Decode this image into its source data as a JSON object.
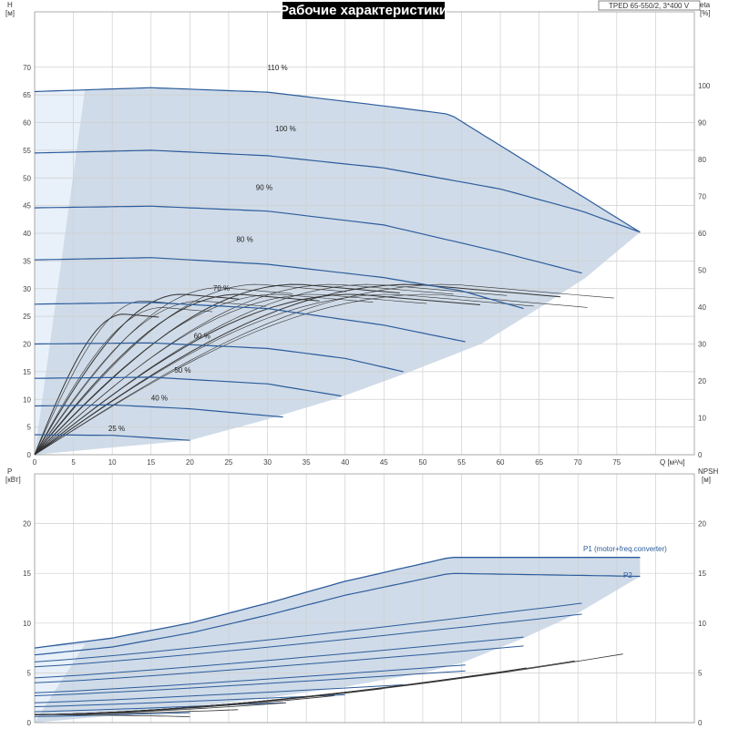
{
  "title": "Рабочие характеристики",
  "model": "TPED 65-550/2, 3*400 V",
  "top_panel": {
    "left_axis_label": [
      "H",
      "[м]"
    ],
    "right_axis_label": [
      "eta",
      "[%]"
    ],
    "x_axis_label": "Q [м³/ч]"
  },
  "bottom_panel": {
    "left_axis_label": [
      "P",
      "[кВт]"
    ],
    "right_axis_label": [
      "NPSH",
      "[м]"
    ],
    "p1_label": "P1 (motor+freq.converter)",
    "p2_label": "P2"
  },
  "colors": {
    "curve": "#2c5c9c",
    "envelope": "#cfdbe8",
    "envelope_light": "#e8f0f9",
    "eff": "#333333"
  },
  "chart_data": [
    {
      "type": "line",
      "ylabel": "H [м]",
      "y2label": "eta [%]",
      "xlabel": "Q [м³/ч]",
      "xlim": [
        0,
        85
      ],
      "ylim": [
        0,
        80
      ],
      "y2lim": [
        0,
        120
      ],
      "x_ticks": [
        "0",
        "5",
        "10",
        "15",
        "20",
        "25",
        "30",
        "35",
        "40",
        "45",
        "50",
        "55",
        "60",
        "65",
        "70",
        "75"
      ],
      "y_ticks": [
        "0",
        "5",
        "10",
        "15",
        "20",
        "25",
        "30",
        "35",
        "40",
        "45",
        "50",
        "55",
        "60",
        "65",
        "70"
      ],
      "y2_ticks": [
        "0",
        "10",
        "20",
        "30",
        "40",
        "50",
        "60",
        "70",
        "80",
        "90",
        "100"
      ],
      "series": [
        {
          "name": "110 %",
          "x": [
            0,
            15,
            30,
            45,
            53.5,
            78
          ],
          "y": [
            65.6,
            66.3,
            65.5,
            63.0,
            61.5,
            40.2
          ]
        },
        {
          "name": "100 %",
          "x": [
            0,
            15,
            30,
            45,
            60,
            70.5,
            78
          ],
          "y": [
            54.5,
            55.0,
            54.0,
            51.8,
            48.0,
            44.0,
            40.2
          ]
        },
        {
          "name": "90 %",
          "x": [
            0,
            15,
            30,
            45,
            60,
            70.5
          ],
          "y": [
            44.6,
            44.9,
            44.0,
            41.5,
            36.6,
            32.8
          ]
        },
        {
          "name": "80 %",
          "x": [
            0,
            15,
            30,
            45,
            55,
            63
          ],
          "y": [
            35.2,
            35.6,
            34.4,
            32.0,
            29.6,
            26.4
          ]
        },
        {
          "name": "70 %",
          "x": [
            0,
            15,
            30,
            45,
            55.5
          ],
          "y": [
            27.2,
            27.5,
            26.4,
            23.4,
            20.4
          ]
        },
        {
          "name": "60 %",
          "x": [
            0,
            15,
            30,
            40,
            47.5
          ],
          "y": [
            20.0,
            20.2,
            19.2,
            17.4,
            15.0
          ]
        },
        {
          "name": "50 %",
          "x": [
            0,
            15,
            30,
            39.5
          ],
          "y": [
            13.8,
            14.0,
            12.8,
            10.6
          ]
        },
        {
          "name": "40 %",
          "x": [
            0,
            10,
            20,
            32
          ],
          "y": [
            8.8,
            9.0,
            8.3,
            6.8
          ]
        },
        {
          "name": "25 %",
          "x": [
            0,
            10,
            20
          ],
          "y": [
            3.6,
            3.5,
            2.6
          ]
        }
      ]
    },
    {
      "type": "line",
      "ylabel": "P [кВт]",
      "y2label": "NPSH [м]",
      "xlim": [
        0,
        85
      ],
      "ylim": [
        0,
        25
      ],
      "y2lim": [
        0,
        25
      ],
      "y_ticks": [
        "0",
        "5",
        "10",
        "15",
        "20"
      ],
      "y2_ticks": [
        "0",
        "5",
        "10",
        "15",
        "20"
      ],
      "series": [
        {
          "name": "P1 (motor+freq.converter)",
          "x": [
            0,
            10,
            20,
            30,
            40,
            53.5,
            78
          ],
          "y": [
            7.5,
            8.5,
            10.0,
            12.0,
            14.2,
            16.6,
            16.6
          ]
        },
        {
          "name": "P2",
          "x": [
            0,
            10,
            20,
            30,
            40,
            53.5,
            78
          ],
          "y": [
            6.8,
            7.6,
            9.0,
            10.8,
            12.8,
            15.0,
            14.7
          ]
        }
      ]
    }
  ]
}
